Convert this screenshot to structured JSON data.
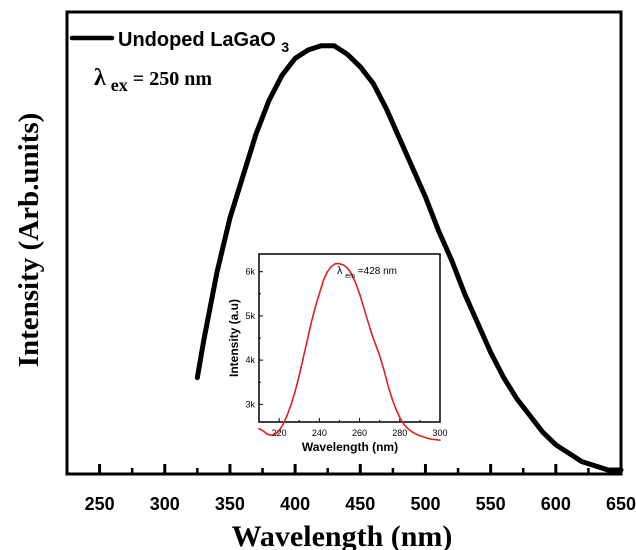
{
  "chart_data": [
    {
      "type": "line",
      "title": "",
      "xlabel": "Wavelength (nm)",
      "ylabel": "Intensity (Arb.units)",
      "xlim": [
        225,
        650
      ],
      "ylim": [
        0,
        1
      ],
      "x_ticks": [
        250,
        300,
        350,
        400,
        450,
        500,
        550,
        600,
        650
      ],
      "x_tick_labels": [
        "250",
        "300",
        "350",
        "400",
        "450",
        "500",
        "550",
        "600",
        "650"
      ],
      "y_ticks_shown": false,
      "grid": false,
      "legend": {
        "placement": "top-left",
        "entries": [
          {
            "name": "Undoped LaGaO",
            "subscript": "3",
            "color": "#000000"
          }
        ]
      },
      "annotations": [
        {
          "symbol": "λ",
          "subscript": "ex",
          "text": " = 250 nm"
        }
      ],
      "series": [
        {
          "name": "Undoped LaGaO3",
          "color": "#000000",
          "x": [
            325,
            330,
            340,
            350,
            360,
            370,
            380,
            390,
            400,
            410,
            420,
            425,
            430,
            440,
            450,
            460,
            470,
            480,
            490,
            500,
            510,
            520,
            530,
            540,
            550,
            560,
            570,
            580,
            590,
            600,
            610,
            620,
            630,
            640,
            645,
            650
          ],
          "y": [
            0.22,
            0.31,
            0.47,
            0.6,
            0.7,
            0.8,
            0.88,
            0.94,
            0.98,
            1.0,
            1.01,
            1.01,
            1.01,
            0.99,
            0.96,
            0.92,
            0.86,
            0.79,
            0.72,
            0.65,
            0.57,
            0.5,
            0.42,
            0.35,
            0.28,
            0.22,
            0.17,
            0.13,
            0.09,
            0.06,
            0.04,
            0.02,
            0.01,
            0.0,
            0.0,
            0.0
          ]
        }
      ]
    },
    {
      "type": "line",
      "title": "",
      "xlabel": "Wavelength (nm)",
      "ylabel": "Intensity (a.u)",
      "xlim": [
        210,
        300
      ],
      "ylim": [
        2600,
        6400
      ],
      "x_ticks": [
        220,
        240,
        260,
        280,
        300
      ],
      "x_tick_labels": [
        "220",
        "240",
        "260",
        "280",
        "300"
      ],
      "y_ticks": [
        3000,
        4000,
        5000,
        6000
      ],
      "y_tick_labels": [
        "3k",
        "4k",
        "5k",
        "6k"
      ],
      "grid": false,
      "annotations": [
        {
          "symbol": "λ",
          "subscript": "em",
          "text": " =428 nm"
        }
      ],
      "series": [
        {
          "name": "",
          "color": "#e02020",
          "x": [
            210,
            212,
            214,
            216,
            218,
            220,
            222,
            224,
            226,
            228,
            230,
            232,
            234,
            236,
            238,
            240,
            242,
            244,
            246,
            248,
            250,
            252,
            254,
            256,
            258,
            260,
            262,
            264,
            266,
            268,
            270,
            272,
            274,
            276,
            278,
            280,
            282,
            284,
            286,
            288,
            290,
            292,
            294,
            296,
            298,
            300
          ],
          "y": [
            2450,
            2400,
            2330,
            2300,
            2320,
            2400,
            2550,
            2750,
            3000,
            3300,
            3650,
            4050,
            4450,
            4850,
            5200,
            5500,
            5800,
            6000,
            6120,
            6180,
            6180,
            6150,
            6080,
            5950,
            5750,
            5500,
            5200,
            4900,
            4600,
            4350,
            4100,
            3800,
            3450,
            3150,
            2900,
            2700,
            2550,
            2450,
            2380,
            2330,
            2290,
            2260,
            2230,
            2210,
            2200,
            2190
          ]
        }
      ]
    }
  ]
}
